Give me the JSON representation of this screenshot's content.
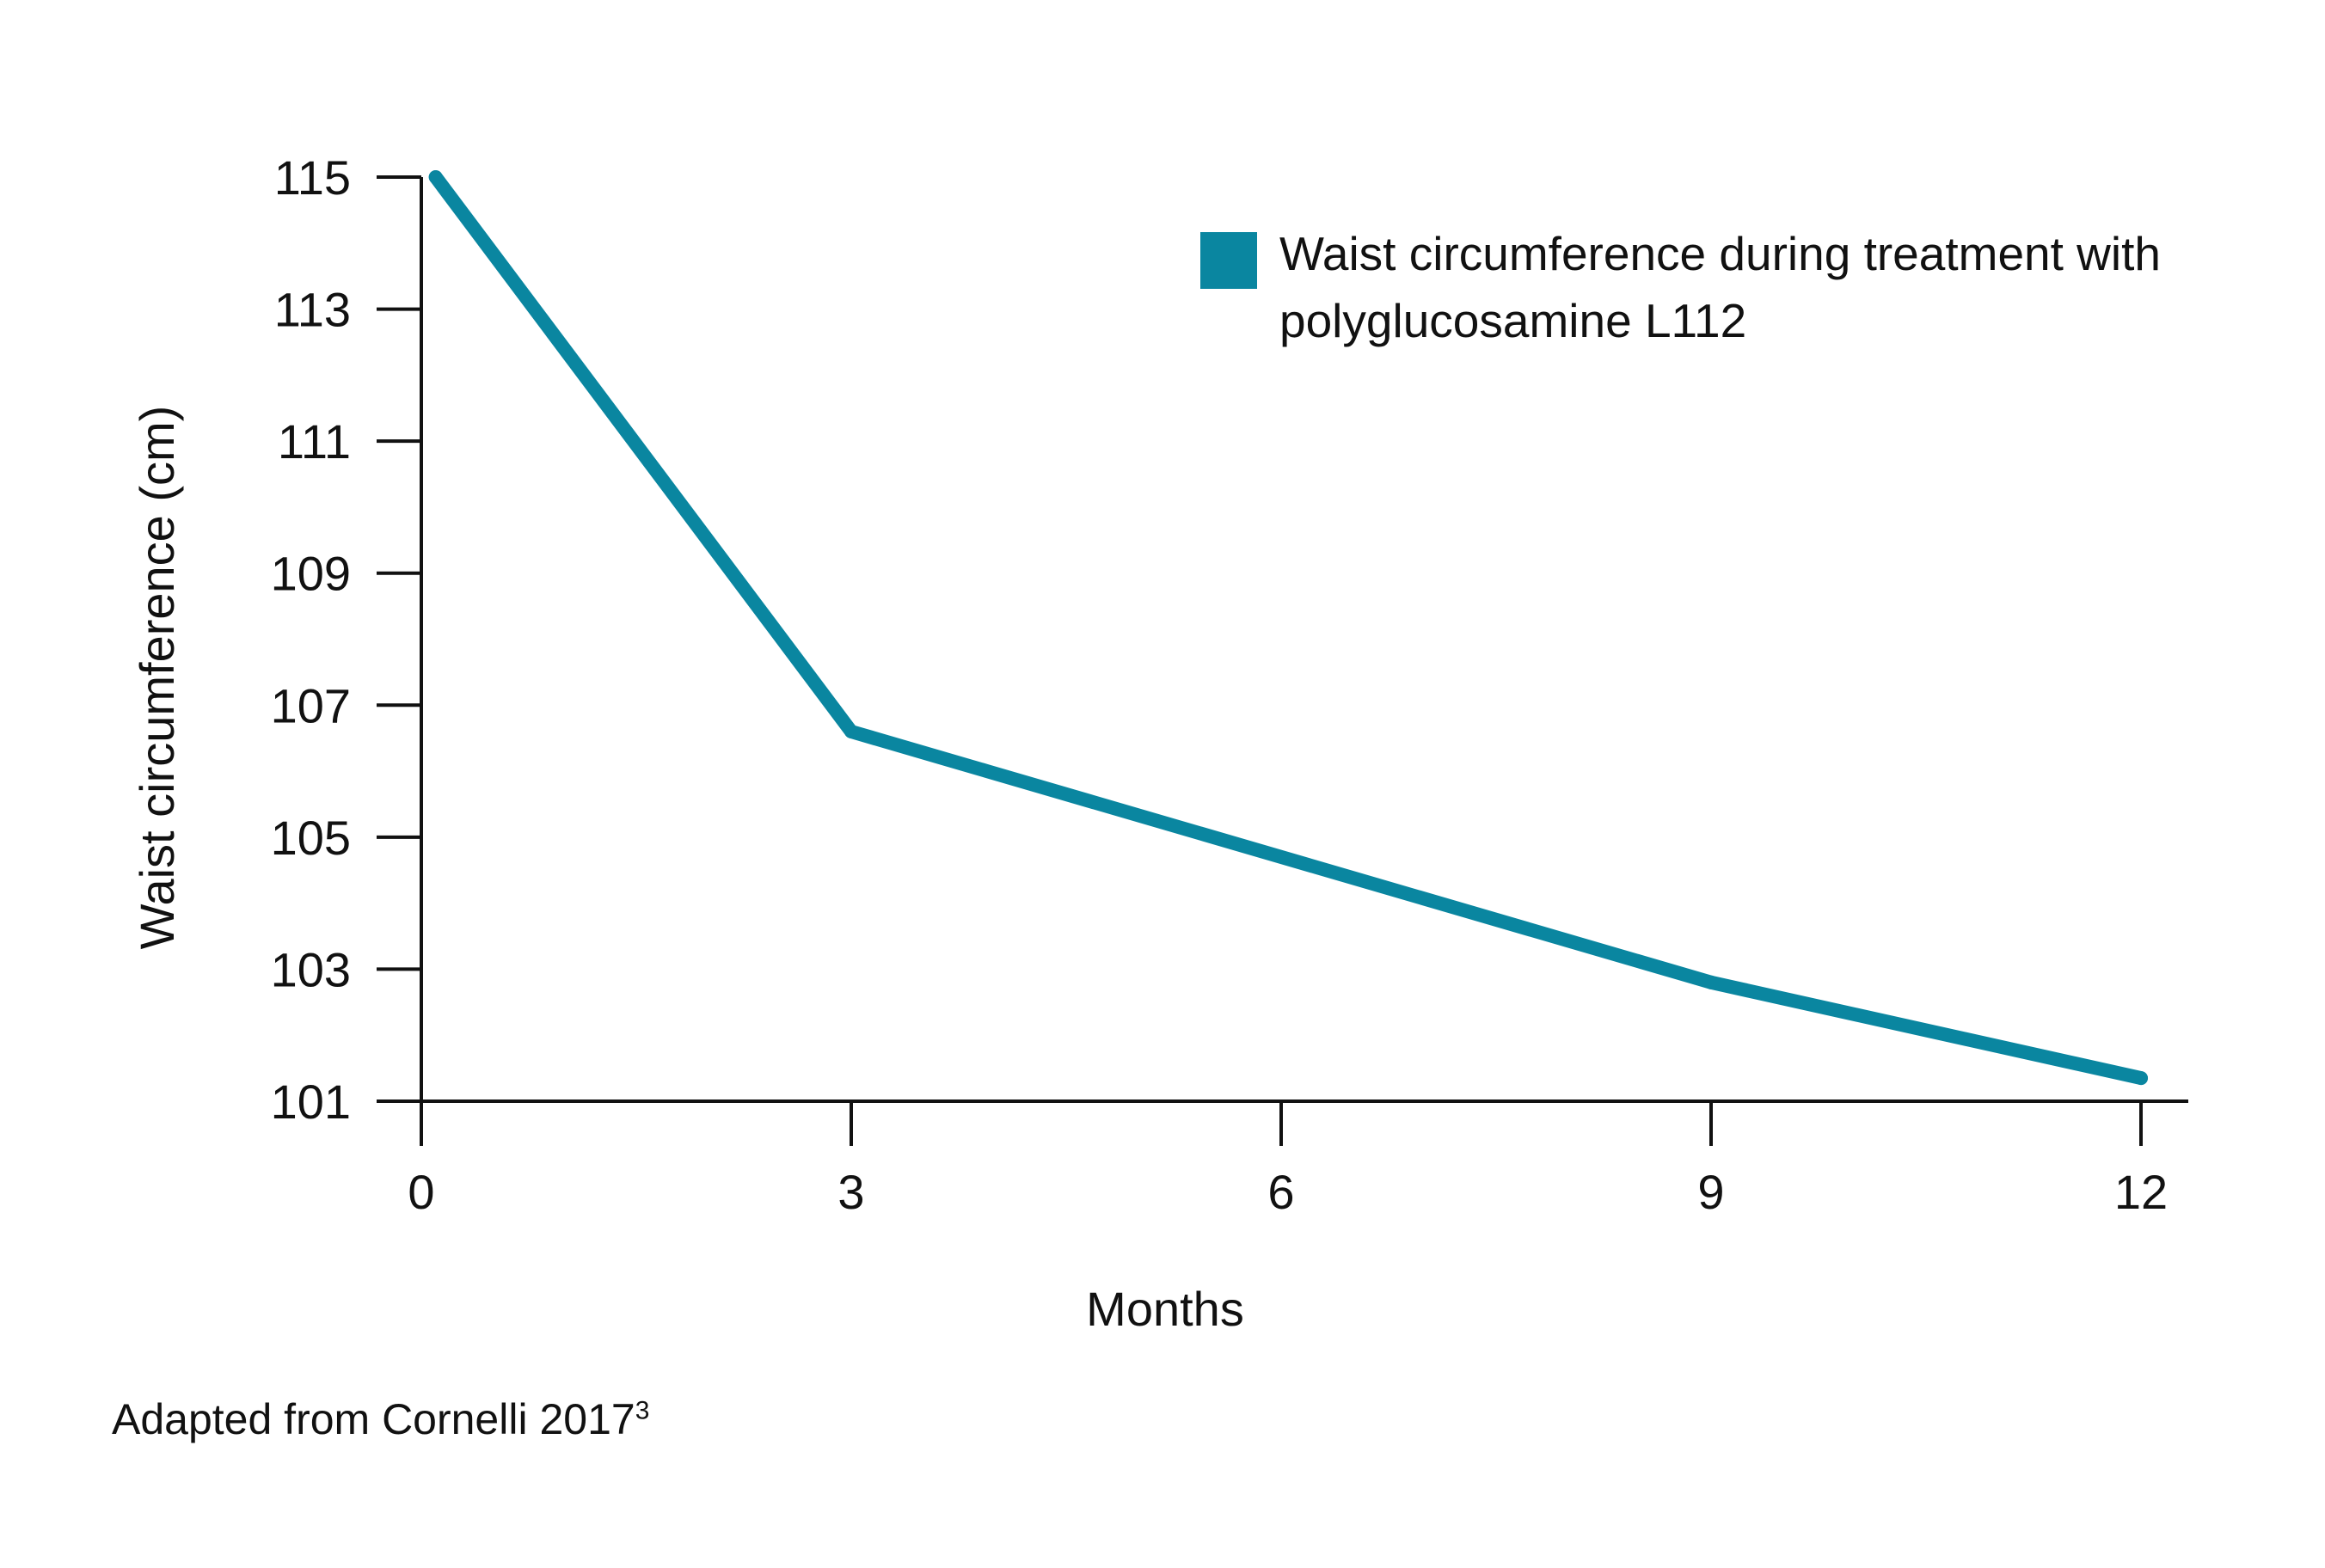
{
  "chart_data": {
    "type": "line",
    "title": "",
    "xlabel": "Months",
    "ylabel": "Waist circumference (cm)",
    "x_ticks": [
      0,
      3,
      6,
      9,
      12
    ],
    "y_ticks": [
      101,
      103,
      105,
      107,
      109,
      111,
      113,
      115
    ],
    "xlim": [
      0,
      12.4
    ],
    "ylim": [
      101,
      115
    ],
    "grid": false,
    "legend_position": "top-right",
    "series": [
      {
        "name": "Waist circumference during treatment with polyglucosamine L112",
        "color": "#0a86a0",
        "x": [
          0.1,
          3,
          9,
          12
        ],
        "y": [
          115.0,
          106.6,
          102.8,
          101.35
        ]
      }
    ]
  },
  "legend": {
    "label": "Waist circumference during treatment with polyglucosamine L112"
  },
  "footnote": {
    "text": "Adapted from Cornelli 2017",
    "superscript": "3"
  }
}
